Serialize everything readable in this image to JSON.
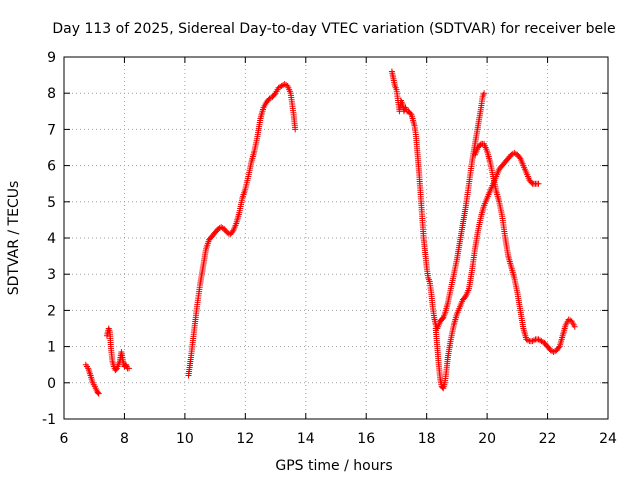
{
  "chart_data": {
    "type": "scatter",
    "title": "Day 113 of 2025, Sidereal Day-to-day VTEC variation (SDTVAR) for receiver bele",
    "xlabel": "GPS time / hours",
    "ylabel": "SDTVAR / TECUs",
    "xlim": [
      6,
      24
    ],
    "ylim": [
      -1,
      9
    ],
    "xticks": [
      "6",
      "8",
      "10",
      "12",
      "14",
      "16",
      "18",
      "20",
      "22",
      "24"
    ],
    "yticks": [
      "-1",
      "0",
      "1",
      "2",
      "3",
      "4",
      "5",
      "6",
      "7",
      "8",
      "9"
    ],
    "grid": true,
    "marker": "plus",
    "color": "#ff0000",
    "series": [
      {
        "name": "seg1",
        "x": [
          6.72,
          6.8,
          6.88,
          6.95,
          7.02,
          7.1,
          7.15
        ],
        "y": [
          0.5,
          0.4,
          0.2,
          0.0,
          -0.1,
          -0.25,
          -0.3
        ]
      },
      {
        "name": "seg2",
        "x": [
          7.42,
          7.48,
          7.52,
          7.55,
          7.6,
          7.65,
          7.7,
          7.75,
          7.8,
          7.85,
          7.9,
          7.95,
          8.0,
          8.05,
          8.1,
          8.15
        ],
        "y": [
          1.3,
          1.5,
          1.4,
          1.0,
          0.6,
          0.45,
          0.35,
          0.4,
          0.5,
          0.6,
          0.85,
          0.6,
          0.45,
          0.5,
          0.4,
          0.4
        ]
      },
      {
        "name": "seg3",
        "x": [
          10.12,
          10.2,
          10.3,
          10.4,
          10.5,
          10.6,
          10.7,
          10.8,
          10.9,
          11.0,
          11.1,
          11.2,
          11.3,
          11.4,
          11.5,
          11.6,
          11.7,
          11.8,
          11.9,
          12.0,
          12.1,
          12.2,
          12.3,
          12.4,
          12.5,
          12.6,
          12.7,
          12.8,
          12.9,
          13.0,
          13.1,
          13.2,
          13.3,
          13.4,
          13.5,
          13.55,
          13.6,
          13.65
        ],
        "y": [
          0.2,
          0.7,
          1.4,
          2.1,
          2.7,
          3.2,
          3.7,
          3.95,
          4.05,
          4.15,
          4.25,
          4.3,
          4.25,
          4.15,
          4.1,
          4.2,
          4.4,
          4.7,
          5.1,
          5.35,
          5.7,
          6.1,
          6.4,
          6.8,
          7.3,
          7.6,
          7.75,
          7.85,
          7.9,
          8.0,
          8.15,
          8.2,
          8.25,
          8.2,
          8.0,
          7.7,
          7.4,
          7.0
        ]
      },
      {
        "name": "seg4",
        "x": [
          16.85,
          16.9,
          16.95,
          17.0,
          17.05,
          17.1,
          17.15,
          17.2,
          17.25,
          17.3,
          17.35,
          17.4,
          17.5,
          17.6,
          17.65,
          17.7,
          17.75,
          17.8,
          17.85,
          17.9,
          17.95,
          18.0,
          18.05,
          18.1,
          18.15,
          18.2,
          18.25,
          18.3,
          18.35,
          18.4,
          18.45,
          18.5,
          18.55,
          18.6,
          18.7,
          18.8,
          18.9,
          19.0,
          19.1,
          19.2,
          19.3,
          19.4,
          19.5,
          19.6,
          19.7,
          19.8,
          19.85,
          19.9
        ],
        "y": [
          8.6,
          8.4,
          8.2,
          8.1,
          7.8,
          7.5,
          7.8,
          7.7,
          7.5,
          7.6,
          7.5,
          7.5,
          7.4,
          7.1,
          6.8,
          6.3,
          5.8,
          5.2,
          4.6,
          4.0,
          3.6,
          3.2,
          2.9,
          2.8,
          2.5,
          2.1,
          1.8,
          1.6,
          1.5,
          1.6,
          1.7,
          1.75,
          1.8,
          1.9,
          2.2,
          2.6,
          3.0,
          3.4,
          3.9,
          4.4,
          4.9,
          5.5,
          6.1,
          6.6,
          7.1,
          7.6,
          7.9,
          8.0
        ]
      },
      {
        "name": "seg5",
        "x": [
          18.3,
          18.35,
          18.4,
          18.45,
          18.5,
          18.55,
          18.6,
          18.65,
          18.7,
          18.8,
          18.9,
          19.0,
          19.1,
          19.2,
          19.3,
          19.4,
          19.5,
          19.6,
          19.7,
          19.8,
          19.9,
          20.0,
          20.1,
          20.2,
          20.3,
          20.4,
          20.5,
          20.6,
          20.7,
          20.8,
          20.9,
          21.0,
          21.1,
          21.2,
          21.3,
          21.4,
          21.5,
          21.6,
          21.7
        ],
        "y": [
          1.5,
          1.0,
          0.5,
          0.1,
          -0.1,
          -0.15,
          0.0,
          0.3,
          0.7,
          1.2,
          1.6,
          1.9,
          2.1,
          2.3,
          2.4,
          2.6,
          3.1,
          3.7,
          4.2,
          4.6,
          4.9,
          5.1,
          5.3,
          5.5,
          5.7,
          5.9,
          6.0,
          6.1,
          6.2,
          6.3,
          6.35,
          6.3,
          6.2,
          6.0,
          5.8,
          5.6,
          5.5,
          5.5,
          5.5
        ]
      },
      {
        "name": "seg6",
        "x": [
          19.6,
          19.7,
          19.8,
          19.9,
          20.0,
          20.1,
          20.2,
          20.3,
          20.4,
          20.5,
          20.6,
          20.7,
          20.8,
          20.9,
          21.0,
          21.1,
          21.2,
          21.3,
          21.4,
          21.5,
          21.6,
          21.7,
          21.8,
          21.9,
          22.0,
          22.1,
          22.2,
          22.3,
          22.4,
          22.5,
          22.6,
          22.7,
          22.8,
          22.9
        ],
        "y": [
          6.3,
          6.5,
          6.6,
          6.6,
          6.4,
          6.1,
          5.7,
          5.3,
          5.0,
          4.6,
          4.0,
          3.5,
          3.2,
          2.9,
          2.5,
          2.0,
          1.5,
          1.2,
          1.15,
          1.15,
          1.2,
          1.2,
          1.15,
          1.1,
          1.0,
          0.9,
          0.85,
          0.9,
          1.0,
          1.3,
          1.6,
          1.75,
          1.7,
          1.55
        ]
      }
    ]
  }
}
